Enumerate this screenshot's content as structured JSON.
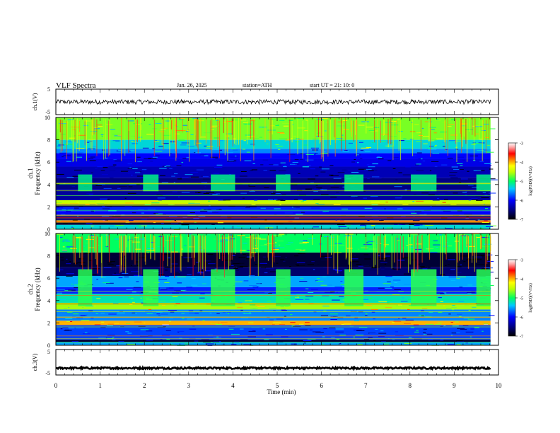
{
  "header": {
    "title": "VLF  Spectra",
    "date": "Jan. 26, 2025",
    "station": "station=ATH",
    "start": "start  UT  =   21: 10: 0"
  },
  "chart_data": [
    {
      "type": "line",
      "panel": "ch1-waveform",
      "ylabel": "ch.1(V)",
      "ylim": [
        -5,
        5
      ],
      "yticks": [
        "5",
        "-5"
      ],
      "xlim": [
        0,
        10
      ],
      "trace": {
        "x_end": 9.82,
        "mean": 0,
        "amplitude": 0.9,
        "color": "#000000"
      }
    },
    {
      "type": "heatmap",
      "panel": "ch1-spectrogram",
      "ylabel": "Frequency  (kHz)",
      "channel_label": "ch.1",
      "ylim": [
        0,
        10
      ],
      "yticks": [
        "0",
        "2",
        "4",
        "6",
        "8",
        "10"
      ],
      "xlim": [
        0,
        10
      ],
      "x_end": 9.82,
      "colorbar": {
        "label": "log(PSD)(V²/Hz)",
        "range": [
          -7,
          -3
        ],
        "ticks": [
          "-3",
          "-4",
          "-5",
          "-6",
          "-7"
        ]
      },
      "bands": [
        {
          "from": 0.0,
          "to": 0.4,
          "level": -5.3
        },
        {
          "from": 0.4,
          "to": 0.6,
          "level": -6.8
        },
        {
          "from": 0.6,
          "to": 0.8,
          "level": -4.0
        },
        {
          "from": 0.8,
          "to": 1.2,
          "level": -6.5
        },
        {
          "from": 1.2,
          "to": 1.6,
          "level": -6.0
        },
        {
          "from": 1.6,
          "to": 2.0,
          "level": -5.9
        },
        {
          "from": 2.0,
          "to": 2.2,
          "level": -6.7
        },
        {
          "from": 2.2,
          "to": 2.6,
          "level": -4.5
        },
        {
          "from": 2.6,
          "to": 3.6,
          "level": -6.4
        },
        {
          "from": 3.6,
          "to": 4.6,
          "level": -6.5
        },
        {
          "from": 4.6,
          "to": 5.6,
          "level": -6.3
        },
        {
          "from": 5.6,
          "to": 6.3,
          "level": -6.1
        },
        {
          "from": 6.3,
          "to": 6.8,
          "level": -6.0
        },
        {
          "from": 6.8,
          "to": 7.2,
          "level": -5.6
        },
        {
          "from": 7.2,
          "to": 8.0,
          "level": -5.3
        },
        {
          "from": 8.0,
          "to": 10.0,
          "level": -4.7
        }
      ],
      "bursts": [
        {
          "from": 0.5,
          "to": 0.82
        },
        {
          "from": 1.97,
          "to": 2.32
        },
        {
          "from": 3.5,
          "to": 4.05
        },
        {
          "from": 4.97,
          "to": 5.3
        },
        {
          "from": 6.52,
          "to": 6.95
        },
        {
          "from": 8.02,
          "to": 8.6
        },
        {
          "from": 9.5,
          "to": 9.82
        }
      ],
      "burst_band": [
        3.4,
        4.9
      ],
      "burst_level": -5.1
    },
    {
      "type": "heatmap",
      "panel": "ch2-spectrogram",
      "ylabel": "Frequency  (kHz)",
      "channel_label": "ch.2",
      "ylim": [
        0,
        10
      ],
      "yticks": [
        "0",
        "2",
        "4",
        "6",
        "8",
        "10"
      ],
      "xlim": [
        0,
        10
      ],
      "x_end": 9.82,
      "colorbar": {
        "label": "log(PSD)(V²/Hz)",
        "range": [
          -7,
          -3
        ],
        "ticks": [
          "-3",
          "-4",
          "-5",
          "-6",
          "-7"
        ]
      },
      "bands": [
        {
          "from": 0.0,
          "to": 0.3,
          "level": -5.5
        },
        {
          "from": 0.3,
          "to": 0.5,
          "level": -6.8
        },
        {
          "from": 0.5,
          "to": 1.8,
          "level": -5.8
        },
        {
          "from": 1.8,
          "to": 2.2,
          "level": -4.0
        },
        {
          "from": 2.2,
          "to": 3.2,
          "level": -5.6
        },
        {
          "from": 3.2,
          "to": 3.8,
          "level": -4.6
        },
        {
          "from": 3.8,
          "to": 4.6,
          "level": -5.2
        },
        {
          "from": 4.6,
          "to": 5.2,
          "level": -5.9
        },
        {
          "from": 5.2,
          "to": 6.2,
          "level": -5.5
        },
        {
          "from": 6.2,
          "to": 7.0,
          "level": -6.6
        },
        {
          "from": 7.0,
          "to": 8.3,
          "level": -6.8
        },
        {
          "from": 8.3,
          "to": 10.0,
          "level": -5.0
        }
      ],
      "bursts": [
        {
          "from": 0.5,
          "to": 0.82
        },
        {
          "from": 1.97,
          "to": 2.32
        },
        {
          "from": 3.5,
          "to": 4.05
        },
        {
          "from": 4.97,
          "to": 5.3
        },
        {
          "from": 6.52,
          "to": 6.95
        },
        {
          "from": 8.02,
          "to": 8.6
        },
        {
          "from": 9.5,
          "to": 9.82
        }
      ],
      "burst_band": [
        3.5,
        6.8
      ],
      "burst_level": -4.9
    },
    {
      "type": "line",
      "panel": "ch3-waveform",
      "ylabel": "ch.3(V)",
      "ylim": [
        -5,
        5
      ],
      "yticks": [
        "5",
        "-5"
      ],
      "xlim": [
        0,
        10
      ],
      "xlabel": "Time  (min)",
      "xticks": [
        "0",
        "1",
        "2",
        "3",
        "4",
        "5",
        "6",
        "7",
        "8",
        "9",
        "10"
      ],
      "trace": {
        "x_end": 9.82,
        "mean": -2.3,
        "amplitude": 0.35,
        "color": "#000000"
      }
    }
  ]
}
